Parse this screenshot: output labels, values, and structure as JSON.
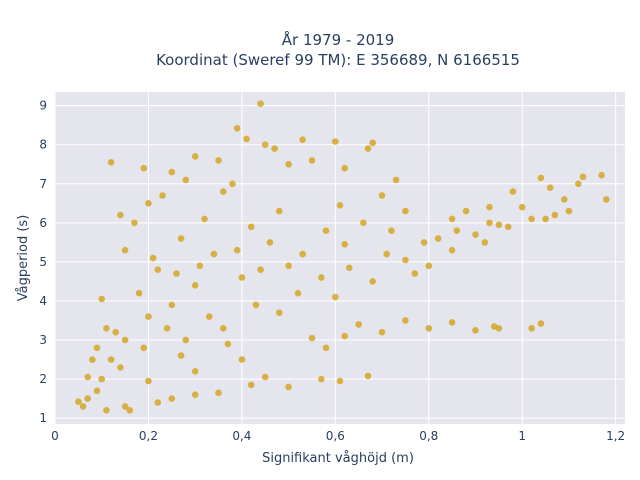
{
  "chart_data": {
    "type": "scatter",
    "title_line1": "År 1979 - 2019",
    "title_line2": "Koordinat (Sweref 99 TM): E 356689, N 6166515",
    "xlabel": "Signifikant våghöjd (m)",
    "ylabel": "Vågperiod (s)",
    "xlim": [
      0,
      1.22
    ],
    "ylim": [
      0.85,
      9.35
    ],
    "x_ticks": [
      0,
      0.2,
      0.4,
      0.6,
      0.8,
      1,
      1.2
    ],
    "x_tick_labels": [
      "0",
      "0,2",
      "0,4",
      "0,6",
      "0,8",
      "1",
      "1,2"
    ],
    "y_ticks": [
      1,
      2,
      3,
      4,
      5,
      6,
      7,
      8,
      9
    ],
    "y_tick_labels": [
      "1",
      "2",
      "3",
      "4",
      "5",
      "6",
      "7",
      "8",
      "9"
    ],
    "grid": true,
    "marker_color": "#d4a21f",
    "plot_background": "#e5e5ee",
    "points": [
      [
        0.44,
        9.05
      ],
      [
        0.53,
        8.13
      ],
      [
        0.39,
        8.42
      ],
      [
        0.6,
        8.08
      ],
      [
        0.67,
        7.9
      ],
      [
        0.73,
        7.1
      ],
      [
        1.18,
        6.6
      ],
      [
        1.17,
        7.22
      ],
      [
        1.13,
        7.18
      ],
      [
        1.06,
        6.9
      ],
      [
        1.04,
        7.15
      ],
      [
        1.05,
        6.1
      ],
      [
        0.98,
        6.8
      ],
      [
        0.93,
        6.4
      ],
      [
        1.04,
        3.42
      ],
      [
        1.02,
        3.3
      ],
      [
        0.94,
        3.35
      ],
      [
        0.8,
        4.9
      ],
      [
        0.67,
        2.08
      ],
      [
        0.61,
        1.95
      ],
      [
        0.12,
        7.55
      ],
      [
        0.1,
        4.05
      ],
      [
        0.05,
        1.42
      ],
      [
        0.06,
        1.3
      ],
      [
        0.08,
        2.5
      ],
      [
        0.15,
        5.3
      ],
      [
        0.17,
        6.0
      ],
      [
        0.2,
        6.5
      ],
      [
        0.25,
        7.3
      ],
      [
        0.3,
        7.7
      ],
      [
        0.35,
        7.6
      ],
      [
        0.45,
        8.0
      ],
      [
        0.55,
        7.6
      ],
      [
        0.61,
        6.45
      ],
      [
        0.7,
        6.7
      ],
      [
        0.75,
        6.3
      ],
      [
        0.85,
        6.1
      ],
      [
        0.9,
        5.7
      ],
      [
        0.95,
        5.95
      ],
      [
        0.85,
        5.3
      ],
      [
        0.75,
        5.05
      ],
      [
        0.62,
        5.45
      ],
      [
        0.5,
        4.9
      ],
      [
        0.4,
        4.6
      ],
      [
        0.3,
        4.4
      ],
      [
        0.25,
        3.9
      ],
      [
        0.2,
        3.6
      ],
      [
        0.15,
        3.0
      ],
      [
        0.12,
        2.5
      ],
      [
        0.1,
        2.0
      ],
      [
        0.28,
        3.0
      ],
      [
        0.36,
        3.3
      ],
      [
        0.48,
        3.7
      ],
      [
        0.6,
        4.1
      ],
      [
        0.55,
        3.05
      ],
      [
        0.7,
        3.2
      ],
      [
        0.8,
        3.3
      ],
      [
        0.9,
        3.25
      ],
      [
        0.4,
        2.5
      ],
      [
        0.3,
        2.2
      ],
      [
        0.2,
        1.95
      ],
      [
        0.45,
        2.05
      ],
      [
        0.5,
        1.8
      ],
      [
        0.35,
        1.65
      ],
      [
        0.25,
        1.5
      ],
      [
        0.15,
        1.3
      ],
      [
        0.32,
        6.1
      ],
      [
        0.42,
        5.9
      ],
      [
        0.48,
        6.3
      ],
      [
        0.38,
        7.0
      ],
      [
        0.27,
        5.6
      ],
      [
        0.22,
        4.8
      ],
      [
        0.18,
        4.2
      ],
      [
        0.34,
        5.2
      ],
      [
        0.46,
        5.5
      ],
      [
        0.58,
        5.8
      ],
      [
        0.66,
        6.0
      ],
      [
        0.72,
        5.8
      ],
      [
        0.82,
        5.6
      ],
      [
        0.88,
        6.3
      ],
      [
        1.0,
        6.4
      ],
      [
        1.09,
        6.6
      ],
      [
        1.1,
        6.3
      ],
      [
        1.12,
        7.0
      ],
      [
        0.97,
        5.9
      ],
      [
        0.92,
        5.5
      ],
      [
        0.77,
        4.7
      ],
      [
        0.68,
        4.5
      ],
      [
        0.52,
        4.2
      ],
      [
        0.43,
        3.9
      ],
      [
        0.33,
        3.6
      ],
      [
        0.24,
        3.3
      ],
      [
        0.19,
        2.8
      ],
      [
        0.14,
        2.3
      ],
      [
        0.65,
        3.4
      ],
      [
        0.75,
        3.5
      ],
      [
        0.85,
        3.45
      ],
      [
        0.95,
        3.3
      ],
      [
        0.58,
        2.8
      ],
      [
        0.62,
        3.1
      ],
      [
        0.37,
        2.9
      ],
      [
        0.27,
        2.6
      ],
      [
        0.07,
        1.5
      ],
      [
        0.09,
        1.7
      ],
      [
        0.11,
        1.2
      ],
      [
        0.16,
        1.2
      ],
      [
        0.22,
        1.4
      ],
      [
        0.3,
        1.6
      ],
      [
        0.42,
        1.85
      ],
      [
        0.57,
        2.0
      ],
      [
        0.13,
        3.2
      ],
      [
        0.11,
        3.3
      ],
      [
        0.09,
        2.8
      ],
      [
        0.07,
        2.05
      ],
      [
        0.41,
        8.15
      ],
      [
        0.5,
        7.5
      ],
      [
        0.62,
        7.4
      ],
      [
        0.68,
        8.05
      ],
      [
        0.47,
        7.9
      ],
      [
        0.36,
        6.8
      ],
      [
        0.28,
        7.1
      ],
      [
        0.23,
        6.7
      ],
      [
        0.19,
        7.4
      ],
      [
        0.14,
        6.2
      ],
      [
        0.21,
        5.1
      ],
      [
        0.26,
        4.7
      ],
      [
        0.31,
        4.9
      ],
      [
        0.39,
        5.3
      ],
      [
        0.44,
        4.8
      ],
      [
        0.53,
        5.2
      ],
      [
        0.57,
        4.6
      ],
      [
        0.63,
        4.85
      ],
      [
        0.71,
        5.2
      ],
      [
        0.79,
        5.5
      ],
      [
        0.86,
        5.8
      ],
      [
        0.93,
        6.0
      ],
      [
        1.02,
        6.1
      ],
      [
        1.07,
        6.2
      ]
    ]
  }
}
